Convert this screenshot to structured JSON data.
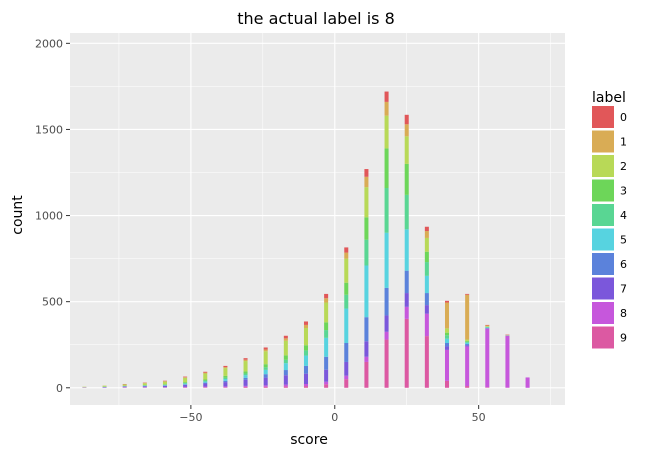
{
  "chart_data": {
    "type": "bar",
    "stacked": true,
    "title": "the actual label is 8",
    "xlabel": "score",
    "ylabel": "count",
    "xlim": [
      -92,
      80
    ],
    "ylim": [
      -100,
      2060
    ],
    "xticks": [
      -50,
      0,
      50
    ],
    "yticks": [
      0,
      500,
      1000,
      1500,
      2000
    ],
    "grid": true,
    "legend": {
      "title": "label",
      "placement": "right"
    },
    "bin_width": 1.4,
    "x": [
      -87,
      -80,
      -73,
      -66,
      -59,
      -52,
      -45,
      -38,
      -31,
      -24,
      -17,
      -10,
      -3,
      4,
      11,
      18,
      25,
      32,
      39,
      46,
      53,
      60,
      67
    ],
    "series": [
      {
        "name": "0",
        "color": "#E15759",
        "values": [
          0,
          0,
          2,
          2,
          3,
          4,
          5,
          7,
          9,
          12,
          15,
          20,
          25,
          30,
          45,
          60,
          55,
          25,
          10,
          5,
          3,
          2,
          0
        ]
      },
      {
        "name": "1",
        "color": "#D9AC55",
        "values": [
          0,
          1,
          1,
          2,
          2,
          3,
          5,
          6,
          8,
          10,
          14,
          18,
          25,
          35,
          60,
          80,
          70,
          40,
          150,
          260,
          5,
          2,
          0
        ]
      },
      {
        "name": "2",
        "color": "#B8D957",
        "values": [
          3,
          5,
          8,
          10,
          15,
          25,
          35,
          45,
          60,
          75,
          85,
          100,
          115,
          140,
          175,
          190,
          160,
          80,
          25,
          8,
          3,
          1,
          0
        ]
      },
      {
        "name": "3",
        "color": "#6DD659",
        "values": [
          0,
          1,
          1,
          2,
          3,
          5,
          6,
          10,
          12,
          18,
          25,
          30,
          45,
          70,
          130,
          230,
          180,
          60,
          15,
          5,
          2,
          0,
          0
        ]
      },
      {
        "name": "4",
        "color": "#59D693",
        "values": [
          0,
          1,
          1,
          2,
          3,
          4,
          6,
          8,
          10,
          15,
          20,
          30,
          45,
          80,
          150,
          260,
          200,
          80,
          20,
          5,
          2,
          0,
          0
        ]
      },
      {
        "name": "5",
        "color": "#57D3E0",
        "values": [
          0,
          1,
          1,
          2,
          2,
          4,
          6,
          10,
          15,
          25,
          40,
          60,
          110,
          200,
          300,
          320,
          240,
          100,
          25,
          8,
          3,
          1,
          0
        ]
      },
      {
        "name": "6",
        "color": "#5B82DB",
        "values": [
          0,
          0,
          1,
          1,
          2,
          3,
          5,
          8,
          12,
          20,
          30,
          45,
          75,
          110,
          140,
          160,
          130,
          70,
          20,
          8,
          2,
          1,
          0
        ]
      },
      {
        "name": "7",
        "color": "#7B57DB",
        "values": [
          2,
          3,
          4,
          6,
          8,
          12,
          18,
          25,
          35,
          45,
          55,
          60,
          70,
          80,
          90,
          95,
          80,
          50,
          20,
          6,
          2,
          1,
          0
        ]
      },
      {
        "name": "8",
        "color": "#C657DC",
        "values": [
          1,
          1,
          2,
          2,
          2,
          3,
          4,
          5,
          6,
          8,
          10,
          12,
          15,
          20,
          30,
          45,
          70,
          130,
          180,
          230,
          340,
          300,
          60
        ]
      },
      {
        "name": "9",
        "color": "#DC59A2",
        "values": [
          0,
          0,
          1,
          1,
          1,
          2,
          3,
          3,
          5,
          6,
          8,
          10,
          20,
          50,
          150,
          280,
          400,
          300,
          40,
          10,
          3,
          1,
          0
        ]
      }
    ]
  }
}
